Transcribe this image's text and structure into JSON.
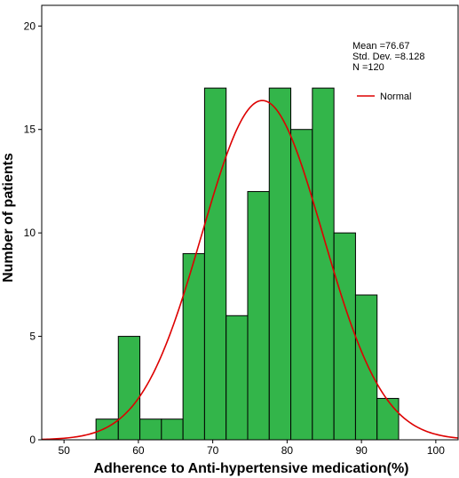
{
  "chart_data": {
    "type": "histogram",
    "xlabel": "Adherence to Anti-hypertensive medication(%)",
    "ylabel": "Number of patients",
    "xlim": [
      47,
      103
    ],
    "ylim": [
      0,
      21
    ],
    "xticks": [
      50,
      60,
      70,
      80,
      90,
      100
    ],
    "yticks": [
      0,
      5,
      10,
      15,
      20
    ],
    "bar_color": "#33b54a",
    "curve_color": "#dd0000",
    "bins": [
      {
        "start": 54.3,
        "end": 57.3,
        "count": 1
      },
      {
        "start": 57.3,
        "end": 60.2,
        "count": 5
      },
      {
        "start": 60.2,
        "end": 63.1,
        "count": 1
      },
      {
        "start": 63.1,
        "end": 66.0,
        "count": 1
      },
      {
        "start": 66.0,
        "end": 68.9,
        "count": 9
      },
      {
        "start": 68.9,
        "end": 71.8,
        "count": 17
      },
      {
        "start": 71.8,
        "end": 74.7,
        "count": 6
      },
      {
        "start": 74.7,
        "end": 77.6,
        "count": 12
      },
      {
        "start": 77.6,
        "end": 80.5,
        "count": 17
      },
      {
        "start": 80.5,
        "end": 83.4,
        "count": 15
      },
      {
        "start": 83.4,
        "end": 86.3,
        "count": 17
      },
      {
        "start": 86.3,
        "end": 89.2,
        "count": 10
      },
      {
        "start": 89.2,
        "end": 92.1,
        "count": 7
      },
      {
        "start": 92.1,
        "end": 95.0,
        "count": 2
      }
    ],
    "normal_curve": {
      "label": "Normal",
      "mean": 76.67,
      "sd": 8.128,
      "peak": 16.4
    },
    "stats": {
      "mean_text": "Mean =76.67",
      "sd_text": "Std. Dev. =8.128",
      "n_text": "N =120"
    }
  }
}
